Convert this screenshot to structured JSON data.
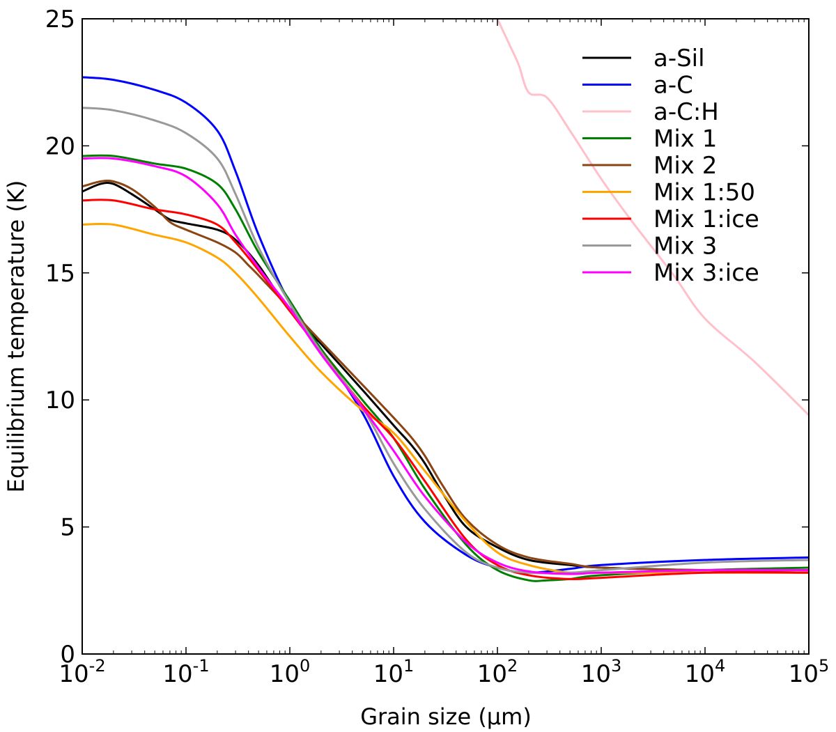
{
  "chart_data": {
    "type": "line",
    "title": "",
    "xlabel": "Grain size (μm)",
    "ylabel": "Equilibrium temperature (K)",
    "xscale": "log",
    "xlim": [
      0.01,
      100000
    ],
    "ylim": [
      0,
      25
    ],
    "x_ticks": [
      {
        "value": 0.01,
        "base": "10",
        "exp": "-2"
      },
      {
        "value": 0.1,
        "base": "10",
        "exp": "-1"
      },
      {
        "value": 1,
        "base": "10",
        "exp": "0"
      },
      {
        "value": 10,
        "base": "10",
        "exp": "1"
      },
      {
        "value": 100,
        "base": "10",
        "exp": "2"
      },
      {
        "value": 1000,
        "base": "10",
        "exp": "3"
      },
      {
        "value": 10000,
        "base": "10",
        "exp": "4"
      },
      {
        "value": 100000,
        "base": "10",
        "exp": "5"
      }
    ],
    "y_ticks": [
      {
        "value": 0,
        "label": "0"
      },
      {
        "value": 5,
        "label": "5"
      },
      {
        "value": 10,
        "label": "10"
      },
      {
        "value": 15,
        "label": "15"
      },
      {
        "value": 20,
        "label": "20"
      },
      {
        "value": 25,
        "label": "25"
      }
    ],
    "grid": false,
    "legend_position": "top-right",
    "series": [
      {
        "name": "a-Sil",
        "color": "#000000",
        "x": [
          0.01,
          0.015,
          0.02,
          0.03,
          0.05,
          0.07,
          0.1,
          0.2,
          0.3,
          0.5,
          1,
          2,
          5,
          10,
          15,
          20,
          30,
          50,
          100,
          200,
          500,
          1000,
          10000,
          100000
        ],
        "y": [
          18.2,
          18.5,
          18.5,
          18.1,
          17.5,
          17.1,
          16.95,
          16.7,
          16.3,
          15.3,
          13.5,
          12.2,
          10.4,
          9.0,
          8.2,
          7.5,
          6.3,
          5.0,
          4.2,
          3.7,
          3.5,
          3.4,
          3.3,
          3.3
        ]
      },
      {
        "name": "a-C",
        "color": "#0000ff",
        "x": [
          0.01,
          0.02,
          0.05,
          0.1,
          0.2,
          0.3,
          0.5,
          1,
          2,
          5,
          10,
          20,
          50,
          100,
          200,
          500,
          1000,
          10000,
          100000
        ],
        "y": [
          22.7,
          22.6,
          22.2,
          21.7,
          20.6,
          19.0,
          16.5,
          13.8,
          12.0,
          9.5,
          7.0,
          5.2,
          3.9,
          3.4,
          3.2,
          3.35,
          3.5,
          3.7,
          3.8
        ]
      },
      {
        "name": "a-C:H",
        "color": "#ffc0cb",
        "x": [
          100,
          130,
          160,
          200,
          300,
          500,
          1000,
          2000,
          5000,
          10000,
          30000,
          100000
        ],
        "y": [
          25.0,
          24.0,
          23.2,
          22.1,
          21.9,
          20.6,
          18.7,
          17.0,
          14.9,
          13.2,
          11.5,
          9.4
        ]
      },
      {
        "name": "Mix 1",
        "color": "#008000",
        "x": [
          0.01,
          0.02,
          0.05,
          0.1,
          0.2,
          0.3,
          0.5,
          1,
          2,
          5,
          10,
          20,
          50,
          100,
          200,
          300,
          500,
          1000,
          10000,
          100000
        ],
        "y": [
          19.6,
          19.6,
          19.3,
          19.1,
          18.5,
          17.5,
          15.8,
          13.9,
          12.0,
          10.0,
          8.5,
          6.5,
          4.3,
          3.3,
          2.9,
          2.9,
          2.95,
          3.1,
          3.3,
          3.4
        ]
      },
      {
        "name": "Mix 2",
        "color": "#8b4513",
        "x": [
          0.01,
          0.015,
          0.02,
          0.03,
          0.05,
          0.07,
          0.1,
          0.2,
          0.3,
          0.4,
          0.5,
          1,
          2,
          5,
          10,
          15,
          20,
          30,
          50,
          100,
          200,
          500,
          1000,
          10000,
          100000
        ],
        "y": [
          18.4,
          18.6,
          18.6,
          18.3,
          17.6,
          17.0,
          16.7,
          16.2,
          15.8,
          15.3,
          14.9,
          13.6,
          12.3,
          10.6,
          9.3,
          8.5,
          7.8,
          6.6,
          5.3,
          4.3,
          3.8,
          3.55,
          3.4,
          3.3,
          3.3
        ]
      },
      {
        "name": "Mix 1:50",
        "color": "#ffa500",
        "x": [
          0.01,
          0.02,
          0.05,
          0.1,
          0.2,
          0.3,
          0.5,
          1,
          2,
          5,
          10,
          20,
          50,
          100,
          200,
          500,
          1000,
          10000,
          100000
        ],
        "y": [
          16.9,
          16.9,
          16.5,
          16.2,
          15.6,
          15.0,
          14.0,
          12.5,
          11.1,
          9.6,
          8.7,
          7.2,
          5.2,
          4.0,
          3.5,
          3.2,
          3.2,
          3.2,
          3.2
        ]
      },
      {
        "name": "Mix 1:ice",
        "color": "#ff0000",
        "x": [
          0.01,
          0.02,
          0.05,
          0.1,
          0.2,
          0.3,
          0.5,
          1,
          2,
          5,
          10,
          20,
          50,
          100,
          200,
          500,
          1000,
          10000,
          100000
        ],
        "y": [
          17.85,
          17.85,
          17.5,
          17.3,
          16.9,
          16.2,
          15.1,
          13.5,
          11.9,
          9.8,
          8.5,
          6.8,
          4.5,
          3.5,
          3.1,
          2.95,
          3.0,
          3.2,
          3.2
        ]
      },
      {
        "name": "Mix 3",
        "color": "#999999",
        "x": [
          0.01,
          0.02,
          0.05,
          0.1,
          0.2,
          0.3,
          0.5,
          1,
          2,
          5,
          10,
          20,
          50,
          100,
          200,
          500,
          1000,
          10000,
          100000
        ],
        "y": [
          21.5,
          21.4,
          21.0,
          20.5,
          19.5,
          18.1,
          16.0,
          13.8,
          11.9,
          9.7,
          7.5,
          5.7,
          4.0,
          3.4,
          3.2,
          3.2,
          3.3,
          3.6,
          3.7
        ]
      },
      {
        "name": "Mix 3:ice",
        "color": "#ff00ff",
        "x": [
          0.01,
          0.02,
          0.05,
          0.1,
          0.2,
          0.3,
          0.5,
          1,
          2,
          5,
          10,
          20,
          50,
          100,
          200,
          500,
          1000,
          10000,
          100000
        ],
        "y": [
          19.5,
          19.5,
          19.2,
          18.8,
          17.7,
          16.5,
          15.2,
          13.6,
          11.8,
          9.7,
          8.0,
          6.2,
          4.4,
          3.6,
          3.25,
          3.15,
          3.2,
          3.3,
          3.3
        ]
      }
    ]
  }
}
